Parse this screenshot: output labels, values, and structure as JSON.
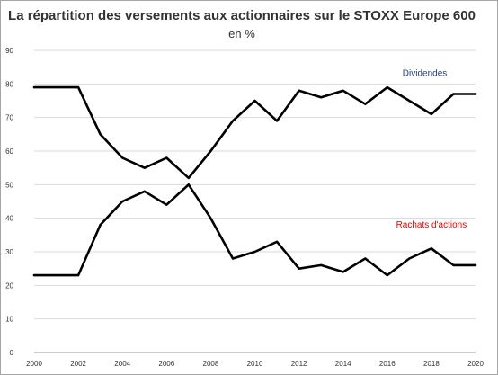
{
  "chart_data": {
    "type": "line",
    "title": "La répartition des versements aux actionnaires sur le STOXX Europe 600",
    "subtitle": "en %",
    "xlabel": "",
    "ylabel": "",
    "x": [
      2000,
      2001,
      2002,
      2003,
      2004,
      2005,
      2006,
      2007,
      2008,
      2009,
      2010,
      2011,
      2012,
      2013,
      2014,
      2015,
      2016,
      2017,
      2018,
      2019,
      2020
    ],
    "x_ticks": [
      2000,
      2002,
      2004,
      2006,
      2008,
      2010,
      2012,
      2014,
      2016,
      2018,
      2020
    ],
    "y_ticks": [
      0,
      10,
      20,
      30,
      40,
      50,
      60,
      70,
      80,
      90
    ],
    "xlim": [
      2000,
      2020
    ],
    "ylim": [
      0,
      90
    ],
    "grid": "horizontal",
    "series": [
      {
        "name": "Dividendes",
        "color": "#1f3d7a",
        "line_color": "#000000",
        "values": [
          79,
          79,
          79,
          65,
          58,
          55,
          58,
          52,
          60,
          69,
          75,
          69,
          78,
          76,
          78,
          74,
          79,
          75,
          71,
          77,
          77
        ]
      },
      {
        "name": "Rachats d'actions",
        "color": "#e60000",
        "line_color": "#000000",
        "values": [
          23,
          23,
          23,
          38,
          45,
          48,
          44,
          50,
          40,
          28,
          30,
          33,
          25,
          26,
          24,
          28,
          23,
          28,
          31,
          26,
          26
        ]
      }
    ]
  }
}
